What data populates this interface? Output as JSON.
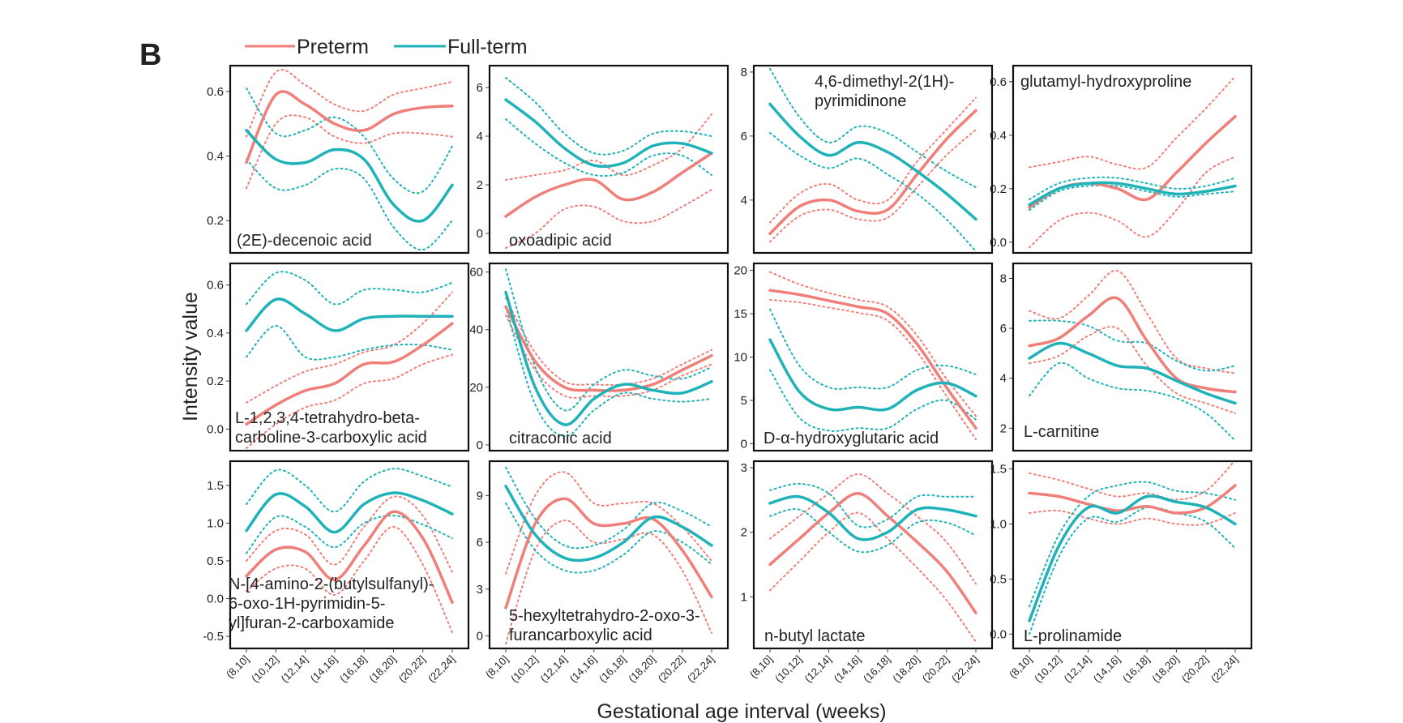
{
  "figure": {
    "panel_letter": "B",
    "ylabel": "Intensity value",
    "xlabel": "Gestational age interval (weeks)"
  },
  "colors": {
    "preterm": "#f07f7a",
    "fullterm": "#1fb3b9"
  },
  "legend": [
    {
      "name": "Preterm",
      "color": "#f07f7a"
    },
    {
      "name": "Full-term",
      "color": "#1fb3b9"
    }
  ],
  "chart_data": {
    "type": "line",
    "x": [
      9,
      11,
      13,
      15,
      17,
      19,
      21,
      23
    ],
    "categories": [
      "(8,10]",
      "(10,12]",
      "(12,14]",
      "(14,16]",
      "(16,18]",
      "(18,20]",
      "(20,22]",
      "(22,24]"
    ],
    "series_names": [
      "Preterm",
      "Full-term"
    ],
    "panels": [
      {
        "label": [
          "(2E)-decenoic acid"
        ],
        "ylim": [
          0.1,
          0.68
        ],
        "yticks": [
          0.2,
          0.4,
          0.6
        ],
        "yticklabels": [
          "0.2",
          "0.4",
          "0.6"
        ],
        "preterm": [
          0.38,
          0.59,
          0.56,
          0.5,
          0.48,
          0.53,
          0.55,
          0.555
        ],
        "preterm_lower": [
          0.3,
          0.5,
          0.52,
          0.46,
          0.44,
          0.47,
          0.47,
          0.46
        ],
        "preterm_upper": [
          0.46,
          0.66,
          0.62,
          0.56,
          0.54,
          0.59,
          0.61,
          0.63
        ],
        "fullterm": [
          0.48,
          0.39,
          0.38,
          0.42,
          0.39,
          0.25,
          0.2,
          0.31
        ],
        "fullterm_lower": [
          0.39,
          0.3,
          0.31,
          0.36,
          0.33,
          0.18,
          0.11,
          0.2
        ],
        "fullterm_upper": [
          0.61,
          0.47,
          0.48,
          0.52,
          0.46,
          0.33,
          0.29,
          0.43
        ]
      },
      {
        "label": [
          "oxoadipic acid"
        ],
        "ylim": [
          -0.8,
          6.9
        ],
        "yticks": [
          0,
          2,
          4,
          6
        ],
        "yticklabels": [
          "0",
          "2",
          "4",
          "6"
        ],
        "preterm": [
          0.7,
          1.5,
          2.0,
          2.2,
          1.4,
          1.7,
          2.5,
          3.3
        ],
        "preterm_lower": [
          -0.6,
          0.0,
          1.0,
          1.1,
          0.5,
          0.5,
          1.1,
          1.8
        ],
        "preterm_upper": [
          2.2,
          2.4,
          2.6,
          3.0,
          2.4,
          2.8,
          3.5,
          4.9
        ],
        "fullterm": [
          5.5,
          4.6,
          3.5,
          2.8,
          2.9,
          3.6,
          3.7,
          3.3
        ],
        "fullterm_lower": [
          4.7,
          3.7,
          2.9,
          2.4,
          2.5,
          3.2,
          3.2,
          2.4
        ],
        "fullterm_upper": [
          6.4,
          5.4,
          4.1,
          3.3,
          3.4,
          4.1,
          4.2,
          4.0
        ]
      },
      {
        "label": [
          "4,6-dimethyl-2(1H)-",
          "pyrimidinone"
        ],
        "ylim": [
          2.35,
          8.2
        ],
        "yticks": [
          4,
          6,
          8
        ],
        "yticklabels": [
          "4",
          "6",
          "8"
        ],
        "preterm": [
          2.95,
          3.8,
          4.0,
          3.65,
          3.7,
          4.8,
          5.9,
          6.8
        ],
        "preterm_lower": [
          2.7,
          3.5,
          3.7,
          3.4,
          3.45,
          4.4,
          5.4,
          6.2
        ],
        "preterm_upper": [
          3.3,
          4.2,
          4.5,
          4.0,
          4.0,
          5.2,
          6.2,
          7.2
        ],
        "fullterm": [
          7.0,
          6.0,
          5.4,
          5.8,
          5.5,
          4.9,
          4.2,
          3.4
        ],
        "fullterm_lower": [
          6.1,
          5.4,
          5.0,
          5.3,
          4.8,
          4.2,
          3.4,
          2.4
        ],
        "fullterm_upper": [
          8.1,
          6.6,
          5.8,
          6.3,
          6.1,
          5.5,
          4.9,
          4.4
        ]
      },
      {
        "label": [
          "glutamyl-hydroxyproline"
        ],
        "ylim": [
          -0.04,
          0.66
        ],
        "yticks": [
          0.0,
          0.2,
          0.4,
          0.6
        ],
        "yticklabels": [
          "0.0",
          "0.2",
          "0.4",
          "0.6"
        ],
        "preterm": [
          0.13,
          0.2,
          0.22,
          0.2,
          0.16,
          0.26,
          0.37,
          0.47
        ],
        "preterm_lower": [
          -0.02,
          0.08,
          0.11,
          0.08,
          0.02,
          0.12,
          0.26,
          0.32
        ],
        "preterm_upper": [
          0.28,
          0.3,
          0.32,
          0.29,
          0.28,
          0.39,
          0.5,
          0.62
        ],
        "fullterm": [
          0.14,
          0.2,
          0.22,
          0.22,
          0.2,
          0.18,
          0.19,
          0.21
        ],
        "fullterm_lower": [
          0.12,
          0.19,
          0.21,
          0.21,
          0.19,
          0.17,
          0.18,
          0.19
        ],
        "fullterm_upper": [
          0.16,
          0.22,
          0.24,
          0.24,
          0.22,
          0.2,
          0.21,
          0.24
        ]
      },
      {
        "label": [
          "L-1,2,3,4-tetrahydro-beta-",
          "carboline-3-carboxylic acid"
        ],
        "ylim": [
          -0.09,
          0.69
        ],
        "yticks": [
          0.0,
          0.2,
          0.4,
          0.6
        ],
        "yticklabels": [
          "0.0",
          "0.2",
          "0.4",
          "0.6"
        ],
        "preterm": [
          0.02,
          0.1,
          0.16,
          0.19,
          0.27,
          0.28,
          0.35,
          0.44
        ],
        "preterm_lower": [
          -0.08,
          0.02,
          0.09,
          0.12,
          0.19,
          0.21,
          0.27,
          0.31
        ],
        "preterm_upper": [
          0.11,
          0.18,
          0.24,
          0.27,
          0.32,
          0.35,
          0.44,
          0.57
        ],
        "fullterm": [
          0.41,
          0.54,
          0.48,
          0.41,
          0.46,
          0.47,
          0.47,
          0.47
        ],
        "fullterm_lower": [
          0.3,
          0.43,
          0.3,
          0.3,
          0.33,
          0.35,
          0.35,
          0.33
        ],
        "fullterm_upper": [
          0.52,
          0.65,
          0.62,
          0.52,
          0.58,
          0.58,
          0.57,
          0.61
        ]
      },
      {
        "label": [
          "citraconic acid"
        ],
        "ylim": [
          -2,
          63
        ],
        "yticks": [
          0,
          20,
          40,
          60
        ],
        "yticklabels": [
          "0",
          "20",
          "40",
          "60"
        ],
        "preterm": [
          48,
          29,
          20,
          19,
          19,
          21,
          26,
          31
        ],
        "preterm_lower": [
          45,
          26,
          17,
          17,
          17,
          19,
          24,
          28
        ],
        "preterm_upper": [
          51,
          32,
          22,
          21,
          21,
          23,
          28,
          33
        ],
        "fullterm": [
          53,
          20,
          7,
          16,
          21,
          19,
          18,
          22
        ],
        "fullterm_lower": [
          48,
          14,
          3,
          12,
          18,
          16,
          15,
          16
        ],
        "fullterm_upper": [
          61,
          27,
          12,
          21,
          26,
          24,
          23,
          27
        ]
      },
      {
        "label": [
          "D-α-hydroxyglutaric acid"
        ],
        "ylim": [
          -0.8,
          20.8
        ],
        "yticks": [
          0,
          5,
          10,
          15,
          20
        ],
        "yticklabels": [
          "0",
          "5",
          "10",
          "15",
          "20"
        ],
        "preterm": [
          17.7,
          17.2,
          16.5,
          15.8,
          15.0,
          11.5,
          6.5,
          1.8
        ],
        "preterm_lower": [
          16.6,
          16.3,
          15.7,
          15.1,
          14.2,
          10.6,
          5.5,
          0.5
        ],
        "preterm_upper": [
          19.8,
          18.4,
          17.4,
          16.6,
          15.8,
          12.5,
          7.5,
          3.2
        ],
        "fullterm": [
          12.0,
          6.0,
          4.0,
          4.2,
          4.0,
          6.2,
          7.0,
          5.5
        ],
        "fullterm_lower": [
          8.5,
          3.0,
          1.5,
          1.8,
          1.8,
          4.0,
          5.0,
          2.8
        ],
        "fullterm_upper": [
          15.5,
          9.0,
          6.5,
          6.5,
          6.5,
          8.5,
          9.0,
          8.0
        ]
      },
      {
        "label": [
          "L-carnitine"
        ],
        "ylim": [
          1.1,
          8.6
        ],
        "yticks": [
          2,
          4,
          6,
          8
        ],
        "yticklabels": [
          "2",
          "4",
          "6",
          "8"
        ],
        "preterm": [
          5.3,
          5.6,
          6.5,
          7.2,
          5.5,
          4.0,
          3.6,
          3.45
        ],
        "preterm_lower": [
          4.6,
          4.9,
          5.7,
          6.0,
          4.5,
          3.4,
          3.0,
          2.6
        ],
        "preterm_upper": [
          6.7,
          6.4,
          7.3,
          8.3,
          6.6,
          4.8,
          4.4,
          4.2
        ],
        "fullterm": [
          4.8,
          5.4,
          5.0,
          4.5,
          4.4,
          3.9,
          3.4,
          3.0
        ],
        "fullterm_lower": [
          3.3,
          4.6,
          4.0,
          3.6,
          3.5,
          3.2,
          2.6,
          1.5
        ],
        "fullterm_upper": [
          6.3,
          6.3,
          6.1,
          5.5,
          5.4,
          4.7,
          4.3,
          4.5
        ]
      },
      {
        "label": [
          "N-[4-amino-2-(butylsulfanyl)-",
          "6-oxo-1H-pyrimidin-5-",
          "yl]furan-2-carboxamide"
        ],
        "ylim": [
          -0.66,
          1.82
        ],
        "yticks": [
          -0.5,
          0.0,
          0.5,
          1.0,
          1.5
        ],
        "yticklabels": [
          "-0.5",
          "0.0",
          "0.5",
          "1.0",
          "1.5"
        ],
        "preterm": [
          0.3,
          0.65,
          0.62,
          0.25,
          0.7,
          1.15,
          0.8,
          -0.05
        ],
        "preterm_lower": [
          0.1,
          0.4,
          0.4,
          0.05,
          0.5,
          0.95,
          0.45,
          -0.45
        ],
        "preterm_upper": [
          0.5,
          0.9,
          0.85,
          0.45,
          0.95,
          1.35,
          1.1,
          0.35
        ],
        "fullterm": [
          0.9,
          1.38,
          1.22,
          0.88,
          1.25,
          1.4,
          1.3,
          1.12
        ],
        "fullterm_lower": [
          0.6,
          1.08,
          0.95,
          0.68,
          1.0,
          1.1,
          0.98,
          0.8
        ],
        "fullterm_upper": [
          1.25,
          1.7,
          1.5,
          1.15,
          1.55,
          1.72,
          1.62,
          1.48
        ]
      },
      {
        "label": [
          "5-hexyltetrahydro-2-oxo-3-",
          "furancarboxylic acid"
        ],
        "ylim": [
          -0.8,
          11.2
        ],
        "yticks": [
          0,
          3,
          6,
          9
        ],
        "yticklabels": [
          "0",
          "3",
          "6",
          "9"
        ],
        "preterm": [
          1.8,
          7.2,
          8.8,
          7.2,
          7.2,
          7.5,
          5.5,
          2.5
        ],
        "preterm_lower": [
          -0.5,
          5.5,
          7.4,
          6.0,
          6.2,
          6.5,
          4.2,
          0.2
        ],
        "preterm_upper": [
          4.0,
          9.0,
          10.5,
          8.5,
          8.5,
          8.5,
          7.0,
          4.8
        ],
        "fullterm": [
          9.6,
          6.5,
          5.0,
          5.0,
          6.0,
          7.6,
          7.0,
          5.8
        ],
        "fullterm_lower": [
          8.5,
          5.5,
          4.2,
          4.2,
          5.2,
          6.7,
          6.0,
          4.6
        ],
        "fullterm_upper": [
          10.8,
          7.5,
          5.8,
          5.8,
          6.8,
          8.5,
          8.0,
          7.0
        ]
      },
      {
        "label": [
          "n-butyl lactate"
        ],
        "ylim": [
          0.2,
          3.1
        ],
        "yticks": [
          1,
          2,
          3
        ],
        "yticklabels": [
          "1",
          "2",
          "3"
        ],
        "preterm": [
          1.5,
          1.9,
          2.3,
          2.6,
          2.25,
          1.85,
          1.4,
          0.75
        ],
        "preterm_lower": [
          1.1,
          1.55,
          2.0,
          2.3,
          1.9,
          1.45,
          0.95,
          0.3
        ],
        "preterm_upper": [
          1.9,
          2.25,
          2.6,
          2.9,
          2.6,
          2.25,
          1.85,
          1.2
        ],
        "fullterm": [
          2.45,
          2.55,
          2.3,
          1.9,
          2.0,
          2.35,
          2.35,
          2.25
        ],
        "fullterm_lower": [
          2.25,
          2.35,
          2.0,
          1.7,
          1.8,
          2.15,
          2.15,
          1.95
        ],
        "fullterm_upper": [
          2.65,
          2.75,
          2.6,
          2.1,
          2.2,
          2.55,
          2.55,
          2.55
        ]
      },
      {
        "label": [
          "L-prolinamide"
        ],
        "ylim": [
          -0.13,
          1.57
        ],
        "yticks": [
          0.0,
          0.5,
          1.0,
          1.5
        ],
        "yticklabels": [
          "0.0",
          "0.5",
          "1.0",
          "1.5"
        ],
        "preterm": [
          1.28,
          1.25,
          1.18,
          1.12,
          1.16,
          1.1,
          1.15,
          1.35
        ],
        "preterm_lower": [
          1.1,
          1.12,
          1.05,
          1.0,
          1.05,
          1.0,
          1.0,
          1.1
        ],
        "preterm_upper": [
          1.46,
          1.4,
          1.32,
          1.25,
          1.28,
          1.22,
          1.3,
          1.58
        ],
        "fullterm": [
          0.12,
          0.8,
          1.15,
          1.1,
          1.25,
          1.2,
          1.15,
          1.0
        ],
        "fullterm_lower": [
          0.0,
          0.7,
          1.05,
          1.02,
          1.15,
          1.1,
          1.02,
          0.78
        ],
        "fullterm_upper": [
          0.25,
          0.9,
          1.25,
          1.35,
          1.38,
          1.3,
          1.28,
          1.22
        ]
      }
    ]
  }
}
